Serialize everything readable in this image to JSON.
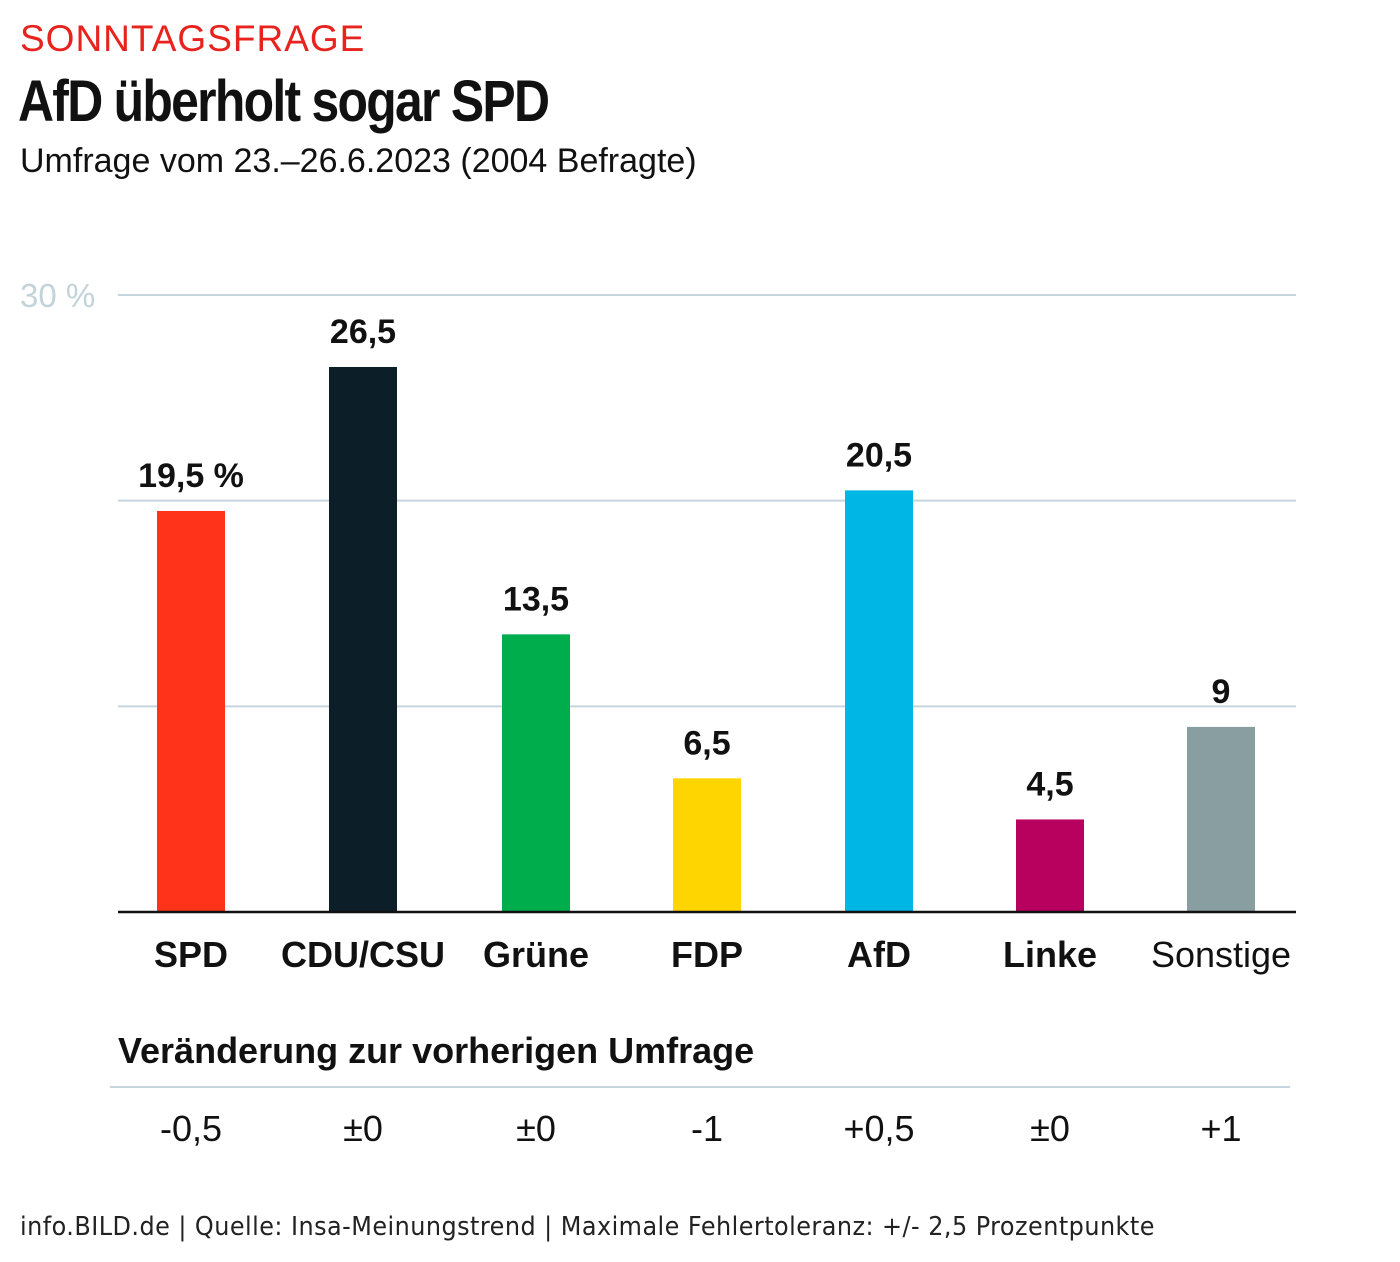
{
  "header": {
    "kicker": "SONNTAGSFRAGE",
    "title": "AfD überholt sogar SPD",
    "subtitle": "Umfrage vom 23.–26.6.2023 (2004 Befragte)"
  },
  "chart_data": {
    "type": "bar",
    "title": "AfD überholt sogar SPD",
    "categories": [
      "SPD",
      "CDU/CSU",
      "Grüne",
      "FDP",
      "AfD",
      "Linke",
      "Sonstige"
    ],
    "values": [
      19.5,
      26.5,
      13.5,
      6.5,
      20.5,
      4.5,
      9
    ],
    "value_labels": [
      "19,5 %",
      "26,5",
      "13,5",
      "6,5",
      "20,5",
      "4,5",
      "9"
    ],
    "colors": [
      "#ff3319",
      "#0c1e27",
      "#00ad4d",
      "#ffd500",
      "#00b6e5",
      "#b8005e",
      "#889ea1"
    ],
    "ylim": [
      0,
      30
    ],
    "gridlines": [
      10,
      20,
      30
    ],
    "ytick_label": "30 %",
    "xlabel": "",
    "ylabel": ""
  },
  "changes": {
    "title": "Veränderung zur vorherigen Umfrage",
    "values": [
      "-0,5",
      "±0",
      "±0",
      "-1",
      "+0,5",
      "±0",
      "+1"
    ]
  },
  "footer": "info.BILD.de | Quelle: Insa-Meinungstrend | Maximale Fehlertoleranz: +/- 2,5 Prozentpunkte"
}
